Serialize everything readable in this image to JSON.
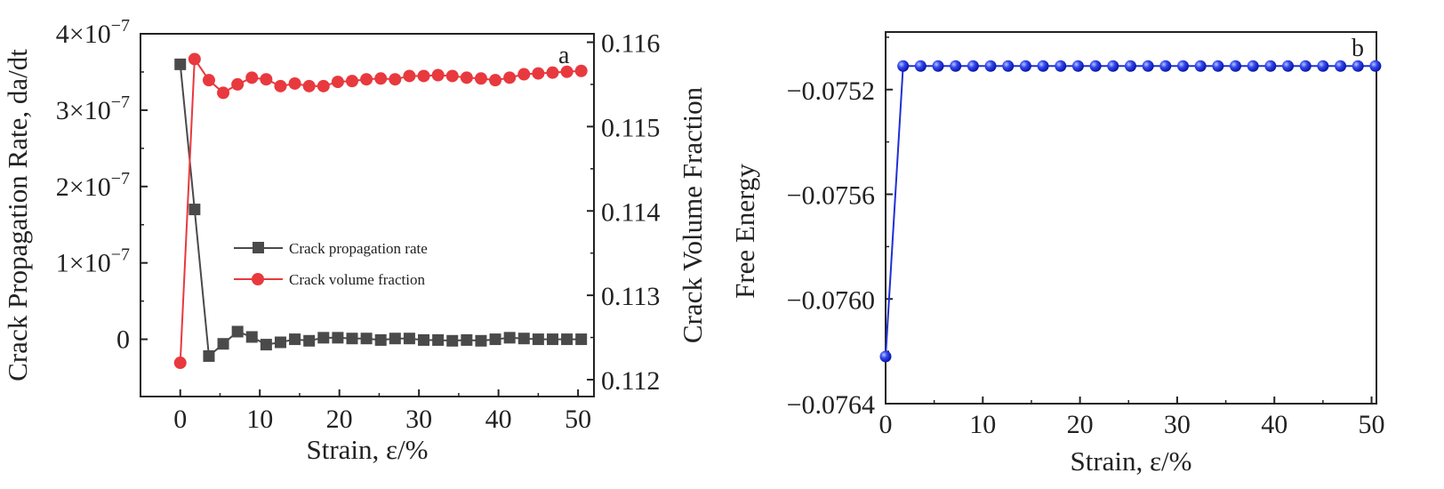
{
  "colors": {
    "rate": "#4a4a4a",
    "fraction": "#e8393e",
    "energy": "#1f2fd6",
    "axis": "#222222"
  },
  "chart_data": [
    {
      "type": "line",
      "panel_label": "a",
      "xlabel": "Strain, ε/%",
      "ylabel": "Crack Propagation Rate, da/dt",
      "y2label": "Crack Volume Fraction",
      "xlim": [
        -5,
        52
      ],
      "ylim": [
        -7.5e-08,
        4e-07
      ],
      "y2lim": [
        0.1118,
        0.1161
      ],
      "x_ticks": [
        "0",
        "10",
        "20",
        "30",
        "40",
        "50"
      ],
      "y_ticks": [
        {
          "value": 0,
          "mant": "0",
          "exp": ""
        },
        {
          "value": 1e-07,
          "mant": "1×10",
          "exp": "−7"
        },
        {
          "value": 2e-07,
          "mant": "2×10",
          "exp": "−7"
        },
        {
          "value": 3e-07,
          "mant": "3×10",
          "exp": "−7"
        },
        {
          "value": 4e-07,
          "mant": "4×10",
          "exp": "−7"
        }
      ],
      "y2_ticks": [
        "0.112",
        "0.113",
        "0.114",
        "0.115",
        "0.116"
      ],
      "legend_position": "center-left",
      "grid": false,
      "series": [
        {
          "name": "Crack propagation rate",
          "axis": "left",
          "marker": "square",
          "x": [
            0,
            1.8,
            3.6,
            5.4,
            7.2,
            9,
            10.8,
            12.6,
            14.4,
            16.2,
            18,
            19.8,
            21.6,
            23.4,
            25.2,
            27,
            28.8,
            30.6,
            32.4,
            34.2,
            36,
            37.8,
            39.6,
            41.4,
            43.2,
            45,
            46.8,
            48.6,
            50.4
          ],
          "values": [
            3.6e-07,
            1.7e-07,
            -2.2e-08,
            -6e-09,
            1e-08,
            3e-09,
            -7e-09,
            -4e-09,
            0,
            -2e-09,
            2e-09,
            2e-09,
            1e-09,
            1e-09,
            -1e-09,
            1e-09,
            1e-09,
            -1e-09,
            -1e-09,
            -2e-09,
            -1e-09,
            -2e-09,
            0,
            2e-09,
            1e-09,
            0,
            0,
            0,
            0
          ]
        },
        {
          "name": "Crack volume fraction",
          "axis": "right",
          "marker": "circle",
          "x": [
            0,
            1.8,
            3.6,
            5.4,
            7.2,
            9,
            10.8,
            12.6,
            14.4,
            16.2,
            18,
            19.8,
            21.6,
            23.4,
            25.2,
            27,
            28.8,
            30.6,
            32.4,
            34.2,
            36,
            37.8,
            39.6,
            41.4,
            43.2,
            45,
            46.8,
            48.6,
            50.4
          ],
          "values": [
            0.1122,
            0.1158,
            0.11555,
            0.1154,
            0.1155,
            0.11558,
            0.11556,
            0.11548,
            0.11551,
            0.11548,
            0.11548,
            0.11553,
            0.11554,
            0.11556,
            0.11557,
            0.11556,
            0.1156,
            0.1156,
            0.11561,
            0.1156,
            0.11558,
            0.11557,
            0.11555,
            0.11558,
            0.11562,
            0.11563,
            0.11564,
            0.11565,
            0.11566
          ]
        }
      ]
    },
    {
      "type": "line",
      "panel_label": "b",
      "xlabel": "Strain, ε/%",
      "ylabel": "Free Energy",
      "xlim": [
        0,
        50.5
      ],
      "ylim": [
        -0.0764,
        -0.07498
      ],
      "x_ticks": [
        "0",
        "10",
        "20",
        "30",
        "40",
        "50"
      ],
      "y_ticks": [
        "−0.0752",
        "−0.0756",
        "−0.0760",
        "−0.0764"
      ],
      "grid": false,
      "series": [
        {
          "marker": "circle",
          "x": [
            0,
            1.8,
            3.6,
            5.4,
            7.2,
            9,
            10.8,
            12.6,
            14.4,
            16.2,
            18,
            19.8,
            21.6,
            23.4,
            25.2,
            27,
            28.8,
            30.6,
            32.4,
            34.2,
            36,
            37.8,
            39.6,
            41.4,
            43.2,
            45,
            46.8,
            48.6,
            50.4
          ],
          "values": [
            -0.07622,
            -0.07511,
            -0.07511,
            -0.07511,
            -0.07511,
            -0.07511,
            -0.07511,
            -0.07511,
            -0.07511,
            -0.07511,
            -0.07511,
            -0.07511,
            -0.07511,
            -0.07511,
            -0.07511,
            -0.07511,
            -0.07511,
            -0.07511,
            -0.07511,
            -0.07511,
            -0.07511,
            -0.07511,
            -0.07511,
            -0.07511,
            -0.07511,
            -0.07511,
            -0.07511,
            -0.07511,
            -0.07511
          ]
        }
      ]
    }
  ]
}
